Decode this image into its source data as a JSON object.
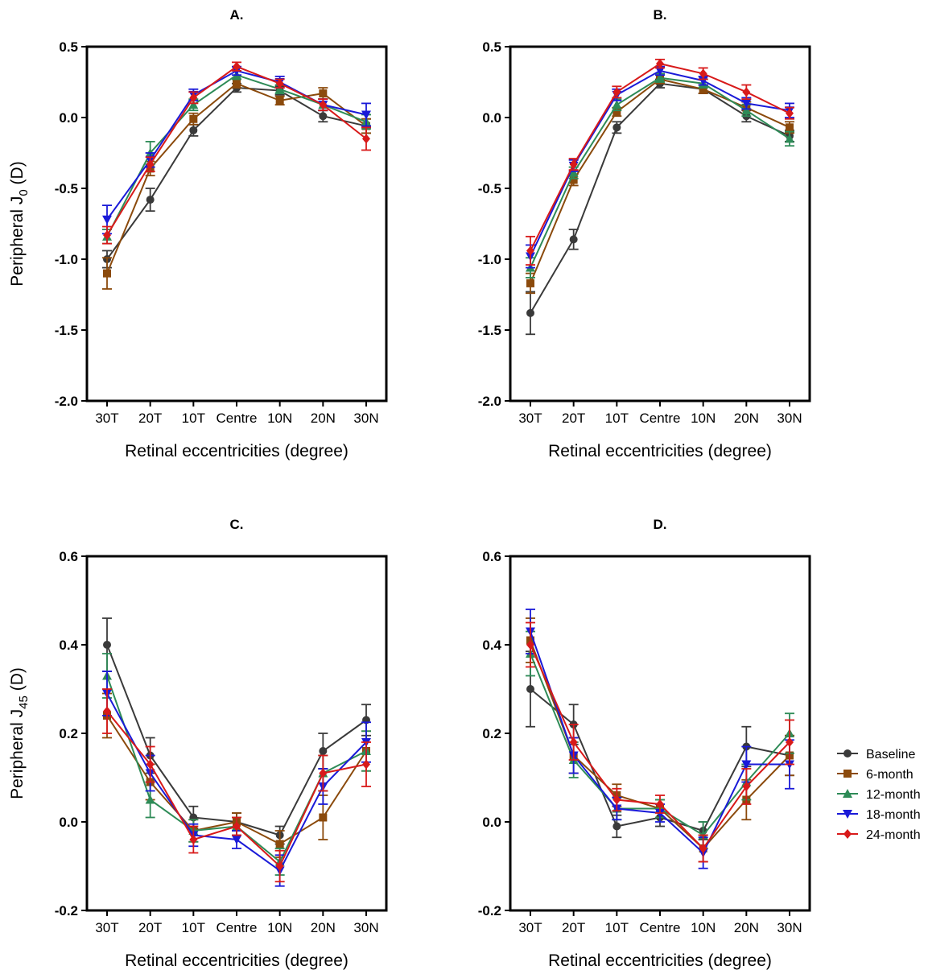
{
  "colors": {
    "Baseline": "#3a3a3a",
    "6-month": "#8b4a0c",
    "12-month": "#2e8b57",
    "18-month": "#1a1ad8",
    "24-month": "#d81a1a"
  },
  "legend": [
    {
      "name": "Baseline",
      "marker": "circle"
    },
    {
      "name": "6-month",
      "marker": "square"
    },
    {
      "name": "12-month",
      "marker": "triangle-up"
    },
    {
      "name": "18-month",
      "marker": "triangle-down"
    },
    {
      "name": "24-month",
      "marker": "diamond"
    }
  ],
  "chart_data": [
    {
      "type": "line",
      "title": "A.",
      "xlabel": "Retinal eccentricities (degree)",
      "ylabel": "Peripheral J0 (D)",
      "ylabel_main": "Peripheral J",
      "ylabel_sub": "0",
      "ylabel_unit": " (D)",
      "categories": [
        "30T",
        "20T",
        "10T",
        "Centre",
        "10N",
        "20N",
        "30N"
      ],
      "ylim": [
        -2.0,
        0.5
      ],
      "yticks": [
        "-2.0",
        "-1.5",
        "-1.0",
        "-0.5",
        "0.0",
        "0.5"
      ],
      "ytick_values": [
        -2.0,
        -1.5,
        -1.0,
        -0.5,
        0.0,
        0.5
      ],
      "series": [
        {
          "name": "Baseline",
          "values": [
            -1.0,
            -0.58,
            -0.09,
            0.21,
            0.19,
            0.01,
            -0.06
          ],
          "err": [
            0.06,
            0.08,
            0.04,
            0.03,
            0.03,
            0.04,
            0.05
          ]
        },
        {
          "name": "6-month",
          "values": [
            -1.1,
            -0.36,
            -0.01,
            0.24,
            0.12,
            0.17,
            -0.06
          ],
          "err": [
            0.11,
            0.05,
            0.04,
            0.03,
            0.03,
            0.04,
            0.05
          ]
        },
        {
          "name": "12-month",
          "values": [
            -0.84,
            -0.25,
            0.09,
            0.3,
            0.2,
            0.09,
            -0.03
          ],
          "err": [
            0.05,
            0.08,
            0.04,
            0.03,
            0.03,
            0.04,
            0.05
          ]
        },
        {
          "name": "18-month",
          "values": [
            -0.72,
            -0.3,
            0.16,
            0.33,
            0.25,
            0.09,
            0.02
          ],
          "err": [
            0.1,
            0.05,
            0.04,
            0.03,
            0.04,
            0.04,
            0.08
          ]
        },
        {
          "name": "24-month",
          "values": [
            -0.83,
            -0.33,
            0.14,
            0.36,
            0.24,
            0.09,
            -0.15
          ],
          "err": [
            0.06,
            0.05,
            0.04,
            0.03,
            0.03,
            0.04,
            0.08
          ]
        }
      ]
    },
    {
      "type": "line",
      "title": "B.",
      "xlabel": "Retinal eccentricities (degree)",
      "ylabel": "",
      "ylabel_main": "",
      "ylabel_sub": "",
      "ylabel_unit": "",
      "categories": [
        "30T",
        "20T",
        "10T",
        "Centre",
        "10N",
        "20N",
        "30N"
      ],
      "ylim": [
        -2.0,
        0.5
      ],
      "yticks": [
        "-2.0",
        "-1.5",
        "-1.0",
        "-0.5",
        "0.0",
        "0.5"
      ],
      "ytick_values": [
        -2.0,
        -1.5,
        -1.0,
        -0.5,
        0.0,
        0.5
      ],
      "series": [
        {
          "name": "Baseline",
          "values": [
            -1.38,
            -0.86,
            -0.07,
            0.24,
            0.2,
            0.01,
            -0.13
          ],
          "err": [
            0.15,
            0.07,
            0.04,
            0.03,
            0.03,
            0.04,
            0.04
          ]
        },
        {
          "name": "6-month",
          "values": [
            -1.17,
            -0.44,
            0.04,
            0.27,
            0.2,
            0.07,
            -0.07
          ],
          "err": [
            0.07,
            0.04,
            0.03,
            0.03,
            0.03,
            0.04,
            0.04
          ]
        },
        {
          "name": "12-month",
          "values": [
            -1.06,
            -0.39,
            0.09,
            0.28,
            0.24,
            0.05,
            -0.15
          ],
          "err": [
            0.07,
            0.04,
            0.04,
            0.03,
            0.03,
            0.04,
            0.05
          ]
        },
        {
          "name": "18-month",
          "values": [
            -0.98,
            -0.34,
            0.16,
            0.33,
            0.26,
            0.1,
            0.05
          ],
          "err": [
            0.08,
            0.04,
            0.04,
            0.03,
            0.03,
            0.04,
            0.05
          ]
        },
        {
          "name": "24-month",
          "values": [
            -0.94,
            -0.33,
            0.18,
            0.38,
            0.31,
            0.18,
            0.03
          ],
          "err": [
            0.1,
            0.04,
            0.04,
            0.03,
            0.04,
            0.05,
            0.04
          ]
        }
      ]
    },
    {
      "type": "line",
      "title": "C.",
      "xlabel": "Retinal eccentricities (degree)",
      "ylabel": "Peripheral J45 (D)",
      "ylabel_main": "Peripheral J",
      "ylabel_sub": "45",
      "ylabel_unit": " (D)",
      "categories": [
        "30T",
        "20T",
        "10T",
        "Centre",
        "10N",
        "20N",
        "30N"
      ],
      "ylim": [
        -0.2,
        0.6
      ],
      "yticks": [
        "-0.2",
        "0.0",
        "0.2",
        "0.4",
        "0.6"
      ],
      "ytick_values": [
        -0.2,
        0.0,
        0.2,
        0.4,
        0.6
      ],
      "series": [
        {
          "name": "Baseline",
          "values": [
            0.4,
            0.15,
            0.01,
            0.0,
            -0.03,
            0.16,
            0.23
          ],
          "err": [
            0.06,
            0.04,
            0.025,
            0.02,
            0.02,
            0.04,
            0.035
          ]
        },
        {
          "name": "6-month",
          "values": [
            0.24,
            0.09,
            -0.02,
            0.0,
            -0.05,
            0.01,
            0.16
          ],
          "err": [
            0.05,
            0.04,
            0.025,
            0.02,
            0.03,
            0.05,
            0.045
          ]
        },
        {
          "name": "12-month",
          "values": [
            0.33,
            0.05,
            -0.02,
            -0.01,
            -0.09,
            0.11,
            0.16
          ],
          "err": [
            0.05,
            0.04,
            0.025,
            0.02,
            0.03,
            0.04,
            0.045
          ]
        },
        {
          "name": "18-month",
          "values": [
            0.29,
            0.11,
            -0.03,
            -0.04,
            -0.11,
            0.08,
            0.18
          ],
          "err": [
            0.05,
            0.04,
            0.025,
            0.02,
            0.035,
            0.04,
            0.045
          ]
        },
        {
          "name": "24-month",
          "values": [
            0.25,
            0.13,
            -0.04,
            -0.01,
            -0.1,
            0.11,
            0.13
          ],
          "err": [
            0.05,
            0.04,
            0.03,
            0.02,
            0.035,
            0.04,
            0.05
          ]
        }
      ]
    },
    {
      "type": "line",
      "title": "D.",
      "xlabel": "Retinal eccentricities (degree)",
      "ylabel": "",
      "ylabel_main": "",
      "ylabel_sub": "",
      "ylabel_unit": "",
      "categories": [
        "30T",
        "20T",
        "10T",
        "Centre",
        "10N",
        "20N",
        "30N"
      ],
      "ylim": [
        -0.2,
        0.6
      ],
      "yticks": [
        "-0.2",
        "0.0",
        "0.2",
        "0.4",
        "0.6"
      ],
      "ytick_values": [
        -0.2,
        0.0,
        0.2,
        0.4,
        0.6
      ],
      "series": [
        {
          "name": "Baseline",
          "values": [
            0.3,
            0.22,
            -0.01,
            0.01,
            -0.02,
            0.17,
            0.15
          ],
          "err": [
            0.085,
            0.045,
            0.025,
            0.02,
            0.02,
            0.045,
            0.045
          ]
        },
        {
          "name": "6-month",
          "values": [
            0.41,
            0.15,
            0.06,
            0.03,
            -0.06,
            0.05,
            0.15
          ],
          "err": [
            0.05,
            0.04,
            0.025,
            0.02,
            0.03,
            0.045,
            0.045
          ]
        },
        {
          "name": "12-month",
          "values": [
            0.38,
            0.14,
            0.03,
            0.03,
            -0.03,
            0.09,
            0.2
          ],
          "err": [
            0.05,
            0.04,
            0.025,
            0.02,
            0.03,
            0.04,
            0.045
          ]
        },
        {
          "name": "18-month",
          "values": [
            0.43,
            0.15,
            0.03,
            0.02,
            -0.07,
            0.13,
            0.13
          ],
          "err": [
            0.05,
            0.04,
            0.025,
            0.02,
            0.035,
            0.04,
            0.055
          ]
        },
        {
          "name": "24-month",
          "values": [
            0.4,
            0.18,
            0.05,
            0.04,
            -0.06,
            0.08,
            0.18
          ],
          "err": [
            0.05,
            0.04,
            0.025,
            0.02,
            0.03,
            0.04,
            0.05
          ]
        }
      ]
    }
  ]
}
